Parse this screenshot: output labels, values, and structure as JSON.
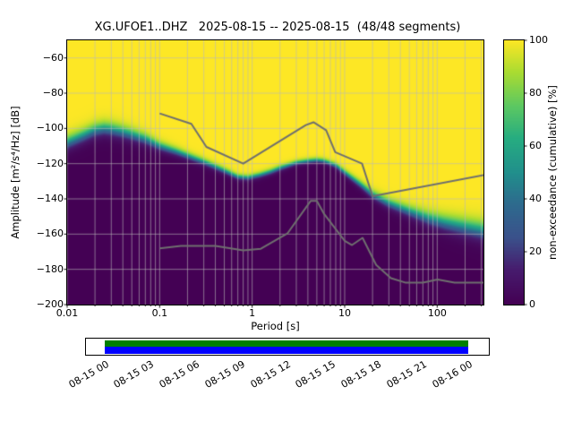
{
  "title": "XG.UFOE1..DHZ   2025-08-15 -- 2025-08-15  (48/48 segments)",
  "axes": {
    "xlabel": "Period [s]",
    "ylabel": "Amplitude [m²/s⁴/Hz] [dB]",
    "x_tick_labels": [
      "0.01",
      "0.1",
      "1",
      "10",
      "100"
    ],
    "x_tick_values": [
      0.01,
      0.1,
      1,
      10,
      100
    ],
    "y_tick_labels": [
      "−60",
      "−80",
      "−100",
      "−120",
      "−140",
      "−160",
      "−180",
      "−200"
    ],
    "y_tick_values": [
      -60,
      -80,
      -100,
      -120,
      -140,
      -160,
      -180,
      -200
    ]
  },
  "colorbar": {
    "label": "non-exceedance (cumulative) [%]",
    "tick_labels": [
      "0",
      "20",
      "40",
      "60",
      "80",
      "100"
    ],
    "tick_values": [
      0,
      20,
      40,
      60,
      80,
      100
    ]
  },
  "timeline": {
    "tick_labels": [
      "08-15 00",
      "08-15 03",
      "08-15 06",
      "08-15 09",
      "08-15 12",
      "08-15 15",
      "08-15 18",
      "08-15 21",
      "08-16 00"
    ],
    "colors": {
      "used_segments": "#008000",
      "data_extent": "#0000ff",
      "background": "#ffffff"
    }
  },
  "chart_data": {
    "type": "heatmap",
    "subtype": "ppsd-cumulative-spectrogram",
    "title": "XG.UFOE1..DHZ   2025-08-15 -- 2025-08-15  (48/48 segments)",
    "station_id": "XG.UFOE1..DHZ",
    "date_range": "2025-08-15 -- 2025-08-15",
    "segments": "48/48",
    "xlabel": "Period [s]",
    "ylabel": "Amplitude [m²/s⁴/Hz] [dB]",
    "zlabel": "non-exceedance (cumulative) [%]",
    "xscale": "log",
    "xlim": [
      0.01,
      316.23
    ],
    "ylim": [
      -200,
      -50
    ],
    "zlim": [
      0,
      100
    ],
    "grid": true,
    "colormap": {
      "name": "viridis",
      "stops": [
        [
          0.0,
          "#440154"
        ],
        [
          0.13,
          "#471c6e"
        ],
        [
          0.25,
          "#3b518b"
        ],
        [
          0.38,
          "#2e6b8e"
        ],
        [
          0.5,
          "#21908c"
        ],
        [
          0.63,
          "#27ad81"
        ],
        [
          0.75,
          "#5cc863"
        ],
        [
          0.88,
          "#aadc32"
        ],
        [
          1.0,
          "#fde725"
        ]
      ]
    },
    "cumulative_median_curve": {
      "comment": "dB level of the 50% non-exceedance boundary vs period; spread_db is logistic width of the transition band",
      "periods": [
        0.01,
        0.015,
        0.02,
        0.025,
        0.03,
        0.04,
        0.05,
        0.07,
        0.1,
        0.15,
        0.2,
        0.3,
        0.5,
        0.7,
        0.9,
        1.2,
        1.6,
        2,
        3,
        4,
        5,
        6,
        8,
        10,
        15,
        20,
        30,
        50,
        80,
        120,
        200,
        316
      ],
      "db": [
        -108,
        -104,
        -101,
        -100,
        -100.5,
        -102,
        -103.5,
        -106,
        -110,
        -113,
        -115.5,
        -119,
        -124,
        -127.5,
        -128,
        -126.5,
        -124.5,
        -122.5,
        -119.5,
        -118.5,
        -118,
        -118.5,
        -121,
        -125,
        -132,
        -137.5,
        -142.5,
        -147,
        -151,
        -153.5,
        -156,
        -158
      ],
      "spread_db": [
        2.2,
        2.2,
        2.2,
        2.2,
        2.2,
        2.1,
        2.0,
        1.8,
        1.5,
        1.3,
        1.2,
        1.1,
        1.0,
        0.9,
        0.9,
        0.9,
        0.9,
        0.9,
        0.8,
        0.8,
        0.8,
        0.8,
        0.9,
        1.0,
        1.2,
        1.4,
        1.6,
        1.8,
        2.2,
        2.5,
        2.8,
        3.0
      ]
    },
    "noise_models": {
      "nhnm_db": [
        [
          0.1,
          -91.5
        ],
        [
          0.22,
          -97.4
        ],
        [
          0.32,
          -110.5
        ],
        [
          0.8,
          -120
        ],
        [
          3.8,
          -98.1
        ],
        [
          4.6,
          -96.5
        ],
        [
          6.3,
          -101
        ],
        [
          7.9,
          -113.5
        ],
        [
          15.4,
          -120
        ],
        [
          20,
          -138.5
        ],
        [
          354,
          -126
        ]
      ],
      "nlnm_db": [
        [
          0.1,
          -168.1
        ],
        [
          0.17,
          -166.7
        ],
        [
          0.4,
          -166.7
        ],
        [
          0.8,
          -169.2
        ],
        [
          1.24,
          -168.3
        ],
        [
          2.4,
          -159.7
        ],
        [
          4.3,
          -141.1
        ],
        [
          5,
          -141.1
        ],
        [
          6,
          -148.6
        ],
        [
          10,
          -163.8
        ],
        [
          12,
          -166.2
        ],
        [
          15.6,
          -162.1
        ],
        [
          21.9,
          -177.5
        ],
        [
          31.6,
          -185
        ],
        [
          45,
          -187.5
        ],
        [
          70,
          -187.5
        ],
        [
          101,
          -185.8
        ],
        [
          154,
          -187.5
        ],
        [
          328,
          -187.5
        ]
      ]
    }
  }
}
